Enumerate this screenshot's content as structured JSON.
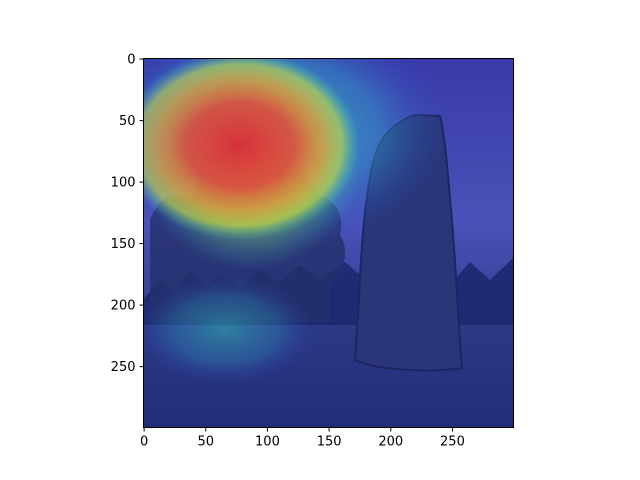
{
  "colors": {
    "frame": "#000000",
    "background": "#ffffff",
    "hot": "#d42a1e",
    "warm": "#e9d21a",
    "mid": "#25c6c0",
    "cool": "#2929b4"
  },
  "chart_data": {
    "type": "heatmap",
    "title": "",
    "xlabel": "",
    "ylabel": "",
    "xlim": [
      0,
      299
    ],
    "ylim": [
      299,
      0
    ],
    "x_ticks": [
      0,
      50,
      100,
      150,
      200,
      250
    ],
    "y_ticks": [
      0,
      50,
      100,
      150,
      200,
      250
    ],
    "x_tick_labels": [
      "0",
      "50",
      "100",
      "150",
      "200",
      "250"
    ],
    "y_tick_labels": [
      "0",
      "50",
      "100",
      "150",
      "200",
      "250"
    ],
    "colormap": "jet",
    "grid": false,
    "overlay": "attention heatmap over photograph of standing stone with tree silhouette at sunset",
    "hotspots": [
      {
        "x": 75,
        "y": 70,
        "intensity": 1.0
      },
      {
        "x": 150,
        "y": 60,
        "intensity": 0.55
      },
      {
        "x": 85,
        "y": 120,
        "intensity": 0.7
      },
      {
        "x": 80,
        "y": 190,
        "intensity": 0.35
      }
    ]
  }
}
